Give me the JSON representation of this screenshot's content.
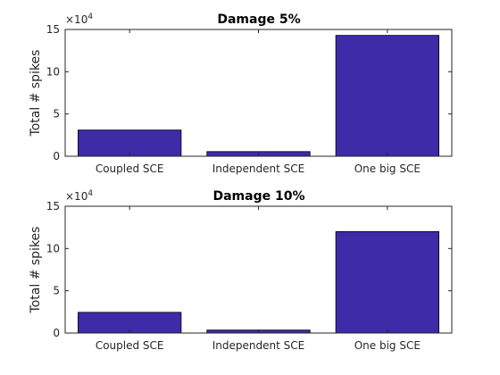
{
  "chart_data": [
    {
      "type": "bar",
      "title": "Damage 5%",
      "categories": [
        "Coupled SCE",
        "Independent SCE",
        "One big SCE"
      ],
      "values": [
        31000,
        5500,
        143000
      ],
      "ylabel": "Total # spikes",
      "ylim": [
        0,
        150000
      ],
      "yticks": [
        0,
        5,
        10,
        15
      ],
      "y_multiplier_base": "×10",
      "y_multiplier_exp": "4",
      "bar_color": "#3d2ba8",
      "grid": false
    },
    {
      "type": "bar",
      "title": "Damage 10%",
      "categories": [
        "Coupled SCE",
        "Independent SCE",
        "One big SCE"
      ],
      "values": [
        24500,
        3500,
        120000
      ],
      "ylabel": "Total # spikes",
      "ylim": [
        0,
        150000
      ],
      "yticks": [
        0,
        5,
        10,
        15
      ],
      "y_multiplier_base": "×10",
      "y_multiplier_exp": "4",
      "bar_color": "#3d2ba8",
      "grid": false
    }
  ]
}
